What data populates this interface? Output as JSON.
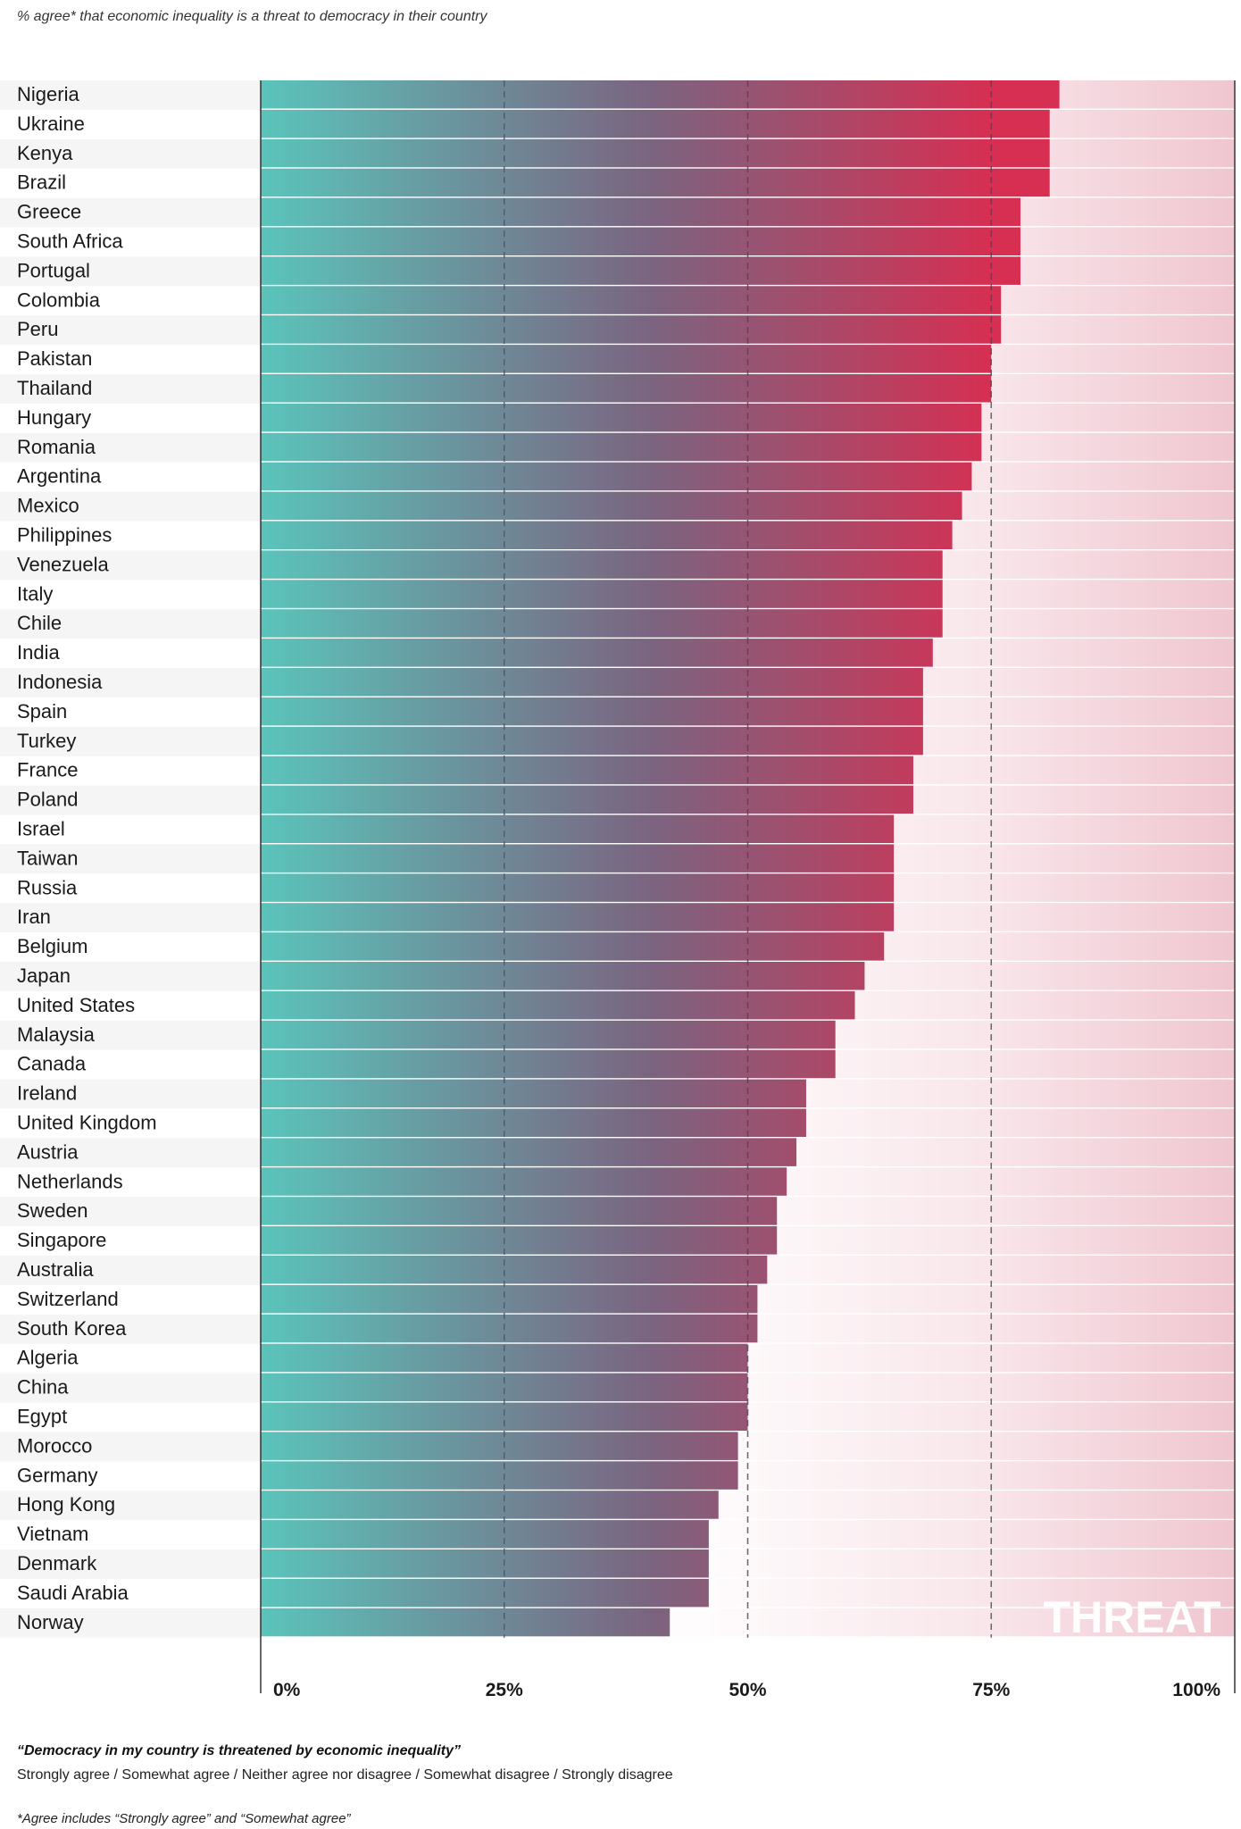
{
  "header": {
    "subtitle": "% agree* that economic inequality is a threat to democracy in their country"
  },
  "chart_data": {
    "type": "bar",
    "orientation": "horizontal",
    "categories": [
      "Nigeria",
      "Ukraine",
      "Kenya",
      "Brazil",
      "Greece",
      "South Africa",
      "Portugal",
      "Colombia",
      "Peru",
      "Pakistan",
      "Thailand",
      "Hungary",
      "Romania",
      "Argentina",
      "Mexico",
      "Philippines",
      "Venezuela",
      "Italy",
      "Chile",
      "India",
      "Indonesia",
      "Spain",
      "Turkey",
      "France",
      "Poland",
      "Israel",
      "Taiwan",
      "Russia",
      "Iran",
      "Belgium",
      "Japan",
      "United States",
      "Malaysia",
      "Canada",
      "Ireland",
      "United Kingdom",
      "Austria",
      "Netherlands",
      "Sweden",
      "Singapore",
      "Australia",
      "Switzerland",
      "South Korea",
      "Algeria",
      "China",
      "Egypt",
      "Morocco",
      "Germany",
      "Hong Kong",
      "Vietnam",
      "Denmark",
      "Saudi Arabia",
      "Norway"
    ],
    "values": [
      82,
      81,
      81,
      81,
      78,
      78,
      78,
      76,
      76,
      75,
      75,
      74,
      74,
      73,
      72,
      71,
      70,
      70,
      70,
      69,
      68,
      68,
      68,
      67,
      67,
      65,
      65,
      65,
      65,
      64,
      62,
      61,
      59,
      59,
      56,
      56,
      55,
      54,
      53,
      53,
      52,
      51,
      51,
      50,
      50,
      50,
      49,
      49,
      47,
      46,
      46,
      46,
      42
    ],
    "xlim": [
      0,
      100
    ],
    "x_ticks": [
      "0%",
      "25%",
      "50%",
      "75%",
      "100%"
    ],
    "x_tick_values": [
      0,
      25,
      50,
      75,
      100
    ],
    "annotation": "THREAT",
    "colors": {
      "low": "#5ac4bb",
      "mid": "#7b6480",
      "high": "#d62f52",
      "background_zone": "#f0c6d0",
      "gridline": "#555555"
    }
  },
  "footer": {
    "question": "“Democracy in my country is threatened by economic inequality”",
    "scale": "Strongly agree / Somewhat agree / Neither agree nor disagree / Somewhat disagree / Strongly disagree",
    "footnote": "*Agree includes “Strongly agree” and “Somewhat agree”"
  }
}
